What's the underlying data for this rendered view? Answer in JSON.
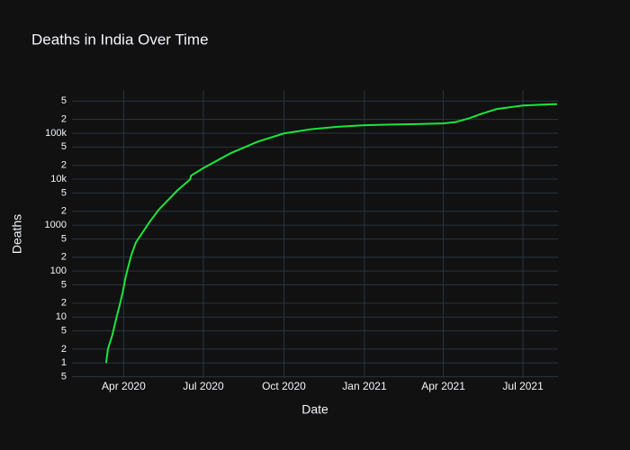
{
  "chart_data": {
    "type": "line",
    "title": "Deaths in India Over Time",
    "x_label": "Date",
    "y_label": "Deaths",
    "color": "#1ae63c",
    "log_y": true,
    "grid": true,
    "x": [
      "2020-03-12",
      "2020-03-14",
      "2020-03-19",
      "2020-03-22",
      "2020-03-25",
      "2020-03-28",
      "2020-03-31",
      "2020-04-03",
      "2020-04-06",
      "2020-04-10",
      "2020-04-15",
      "2020-05-01",
      "2020-05-11",
      "2020-06-01",
      "2020-06-16",
      "2020-06-17",
      "2020-07-01",
      "2020-08-01",
      "2020-09-01",
      "2020-10-01",
      "2020-11-01",
      "2020-12-01",
      "2021-01-01",
      "2021-02-01",
      "2021-03-01",
      "2021-04-01",
      "2021-04-15",
      "2021-05-01",
      "2021-05-15",
      "2021-06-01",
      "2021-07-01",
      "2021-08-01",
      "2021-08-09"
    ],
    "values": [
      1,
      2,
      4,
      7,
      12,
      20,
      35,
      70,
      120,
      230,
      420,
      1200,
      2150,
      5600,
      9900,
      11900,
      17400,
      36500,
      65300,
      98700,
      122000,
      137600,
      149000,
      154500,
      157300,
      162900,
      174300,
      211800,
      266200,
      335100,
      400300,
      424800,
      428700
    ],
    "xlim": [
      "2020-02-02",
      "2021-08-10"
    ],
    "xticks": [
      {
        "value": "2020-04-01",
        "label": "Apr 2020"
      },
      {
        "value": "2020-07-01",
        "label": "Jul 2020"
      },
      {
        "value": "2020-10-01",
        "label": "Oct 2020"
      },
      {
        "value": "2021-01-01",
        "label": "Jan 2021"
      },
      {
        "value": "2021-04-01",
        "label": "Apr 2021"
      },
      {
        "value": "2021-07-01",
        "label": "Jul 2021"
      }
    ],
    "ylim": [
      0.47,
      870000
    ],
    "yticks": [
      {
        "value": 0.5,
        "label": "5"
      },
      1,
      2,
      5,
      10,
      {
        "value": 20,
        "label": "2"
      },
      {
        "value": 50,
        "label": "5"
      },
      100,
      {
        "value": 200,
        "label": "2"
      },
      {
        "value": 500,
        "label": "5"
      },
      1000,
      {
        "value": 2000,
        "label": "2"
      },
      {
        "value": 5000,
        "label": "5"
      },
      {
        "value": 10000,
        "label": "10k"
      },
      {
        "value": 20000,
        "label": "2"
      },
      {
        "value": 50000,
        "label": "5"
      },
      {
        "value": 100000,
        "label": "100k"
      },
      {
        "value": 200000,
        "label": "2"
      },
      {
        "value": 500000,
        "label": "5"
      }
    ]
  }
}
